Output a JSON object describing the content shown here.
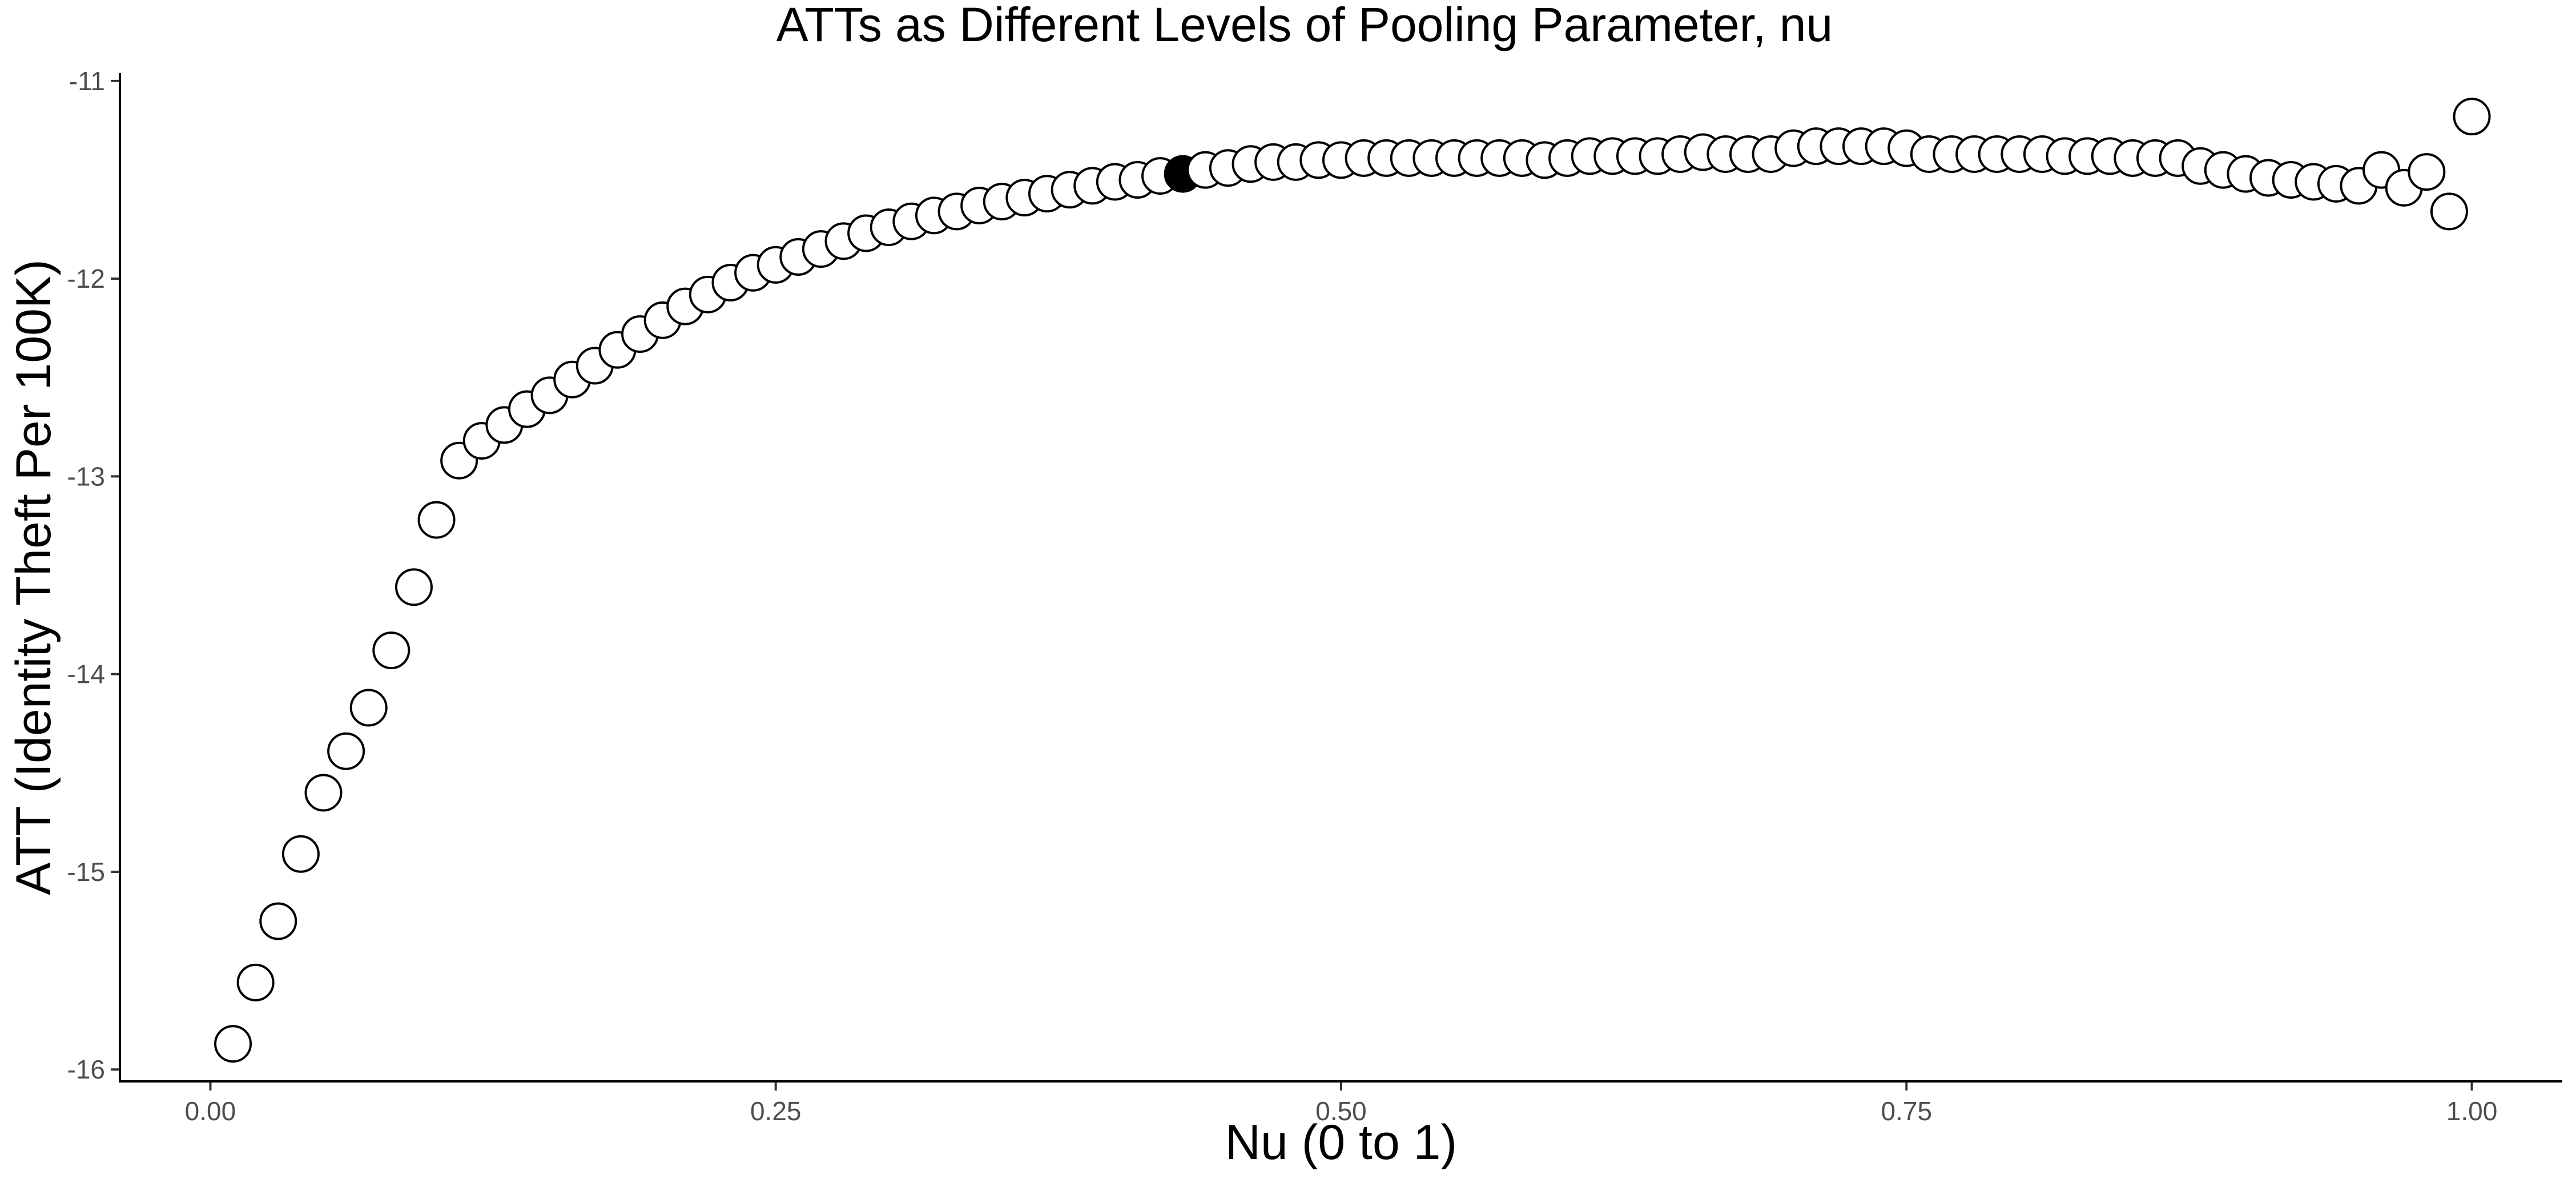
{
  "chart_data": {
    "type": "scatter",
    "title": "ATTs as Different Levels of Pooling Parameter, nu",
    "xlabel": "Nu (0 to 1)",
    "ylabel": "ATT (Identity Theft Per 100K)",
    "xlim": [
      -0.04,
      1.04
    ],
    "ylim": [
      -16.06,
      -10.96
    ],
    "xticks": [
      0.0,
      0.25,
      0.5,
      0.75,
      1.0
    ],
    "xtick_labels": [
      "0.00",
      "0.25",
      "0.50",
      "0.75",
      "1.00"
    ],
    "yticks": [
      -16,
      -15,
      -14,
      -13,
      -12,
      -11
    ],
    "ytick_labels": [
      "-16",
      "-15",
      "-14",
      "-13",
      "-12",
      "-11"
    ],
    "grid": false,
    "legend": "none",
    "marker_fill": "#ffffff",
    "marker_edge": "#000000",
    "highlight_fill": "#000000",
    "highlight_x": 0.43,
    "x": [
      0.01,
      0.02,
      0.03,
      0.04,
      0.05,
      0.06,
      0.07,
      0.08,
      0.09,
      0.1,
      0.11,
      0.12,
      0.13,
      0.14,
      0.15,
      0.16,
      0.17,
      0.18,
      0.19,
      0.2,
      0.21,
      0.22,
      0.23,
      0.24,
      0.25,
      0.26,
      0.27,
      0.28,
      0.29,
      0.3,
      0.31,
      0.32,
      0.33,
      0.34,
      0.35,
      0.36,
      0.37,
      0.38,
      0.39,
      0.4,
      0.41,
      0.42,
      0.43,
      0.44,
      0.45,
      0.46,
      0.47,
      0.48,
      0.49,
      0.5,
      0.51,
      0.52,
      0.53,
      0.54,
      0.55,
      0.56,
      0.57,
      0.58,
      0.59,
      0.6,
      0.61,
      0.62,
      0.63,
      0.64,
      0.65,
      0.66,
      0.67,
      0.68,
      0.69,
      0.7,
      0.71,
      0.72,
      0.73,
      0.74,
      0.75,
      0.76,
      0.77,
      0.78,
      0.79,
      0.8,
      0.81,
      0.82,
      0.83,
      0.84,
      0.85,
      0.86,
      0.87,
      0.88,
      0.89,
      0.9,
      0.91,
      0.92,
      0.93,
      0.94,
      0.95,
      0.96,
      0.97,
      0.98,
      0.99,
      1.0
    ],
    "y": [
      -15.87,
      -15.56,
      -15.25,
      -14.91,
      -14.6,
      -14.39,
      -14.17,
      -13.88,
      -13.56,
      -13.22,
      -12.92,
      -12.82,
      -12.74,
      -12.66,
      -12.59,
      -12.51,
      -12.44,
      -12.36,
      -12.28,
      -12.21,
      -12.14,
      -12.08,
      -12.02,
      -11.97,
      -11.93,
      -11.89,
      -11.85,
      -11.81,
      -11.77,
      -11.74,
      -11.71,
      -11.68,
      -11.66,
      -11.63,
      -11.61,
      -11.59,
      -11.57,
      -11.55,
      -11.53,
      -11.51,
      -11.5,
      -11.48,
      -11.47,
      -11.45,
      -11.44,
      -11.42,
      -11.41,
      -11.41,
      -11.4,
      -11.4,
      -11.39,
      -11.39,
      -11.39,
      -11.39,
      -11.39,
      -11.39,
      -11.39,
      -11.39,
      -11.4,
      -11.39,
      -11.38,
      -11.38,
      -11.38,
      -11.38,
      -11.37,
      -11.36,
      -11.37,
      -11.37,
      -11.37,
      -11.34,
      -11.33,
      -11.33,
      -11.33,
      -11.33,
      -11.34,
      -11.37,
      -11.37,
      -11.37,
      -11.37,
      -11.37,
      -11.37,
      -11.38,
      -11.38,
      -11.38,
      -11.39,
      -11.39,
      -11.39,
      -11.43,
      -11.45,
      -11.47,
      -11.49,
      -11.5,
      -11.51,
      -11.52,
      -11.53,
      -11.45,
      -11.54,
      -11.46,
      -11.66,
      -11.18
    ]
  }
}
